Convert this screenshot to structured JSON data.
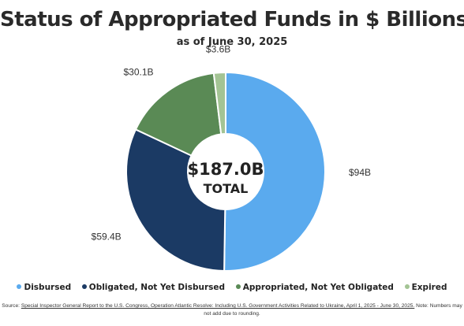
{
  "chart_data": {
    "type": "pie",
    "title": "Status of Appropriated Funds in $ Billions",
    "subtitle": "as of June 30, 2025",
    "center_value": "$187.0B",
    "center_label": "TOTAL",
    "total": 187.0,
    "categories": [
      "Disbursed",
      "Obligated, Not Yet Disbursed",
      "Appropriated, Not Yet Obligated",
      "Expired"
    ],
    "values": [
      94,
      59.4,
      30.1,
      3.6
    ],
    "data_labels": [
      "$94B",
      "$59.4B",
      "$30.1B",
      "$3.6B"
    ],
    "colors": [
      "#5aaaee",
      "#1b3a64",
      "#5a8a55",
      "#a3c494"
    ],
    "legend_position": "bottom"
  },
  "source": {
    "prefix": "Source: ",
    "linked_text": "Special Inspector General Report to the U.S. Congress, Operation Atlantic Resolve: Including U.S. Government Activities Related to Ukraine, April 1, 2025 - June 30, 2025.",
    "note": " Note: Numbers may not add due to rounding."
  }
}
